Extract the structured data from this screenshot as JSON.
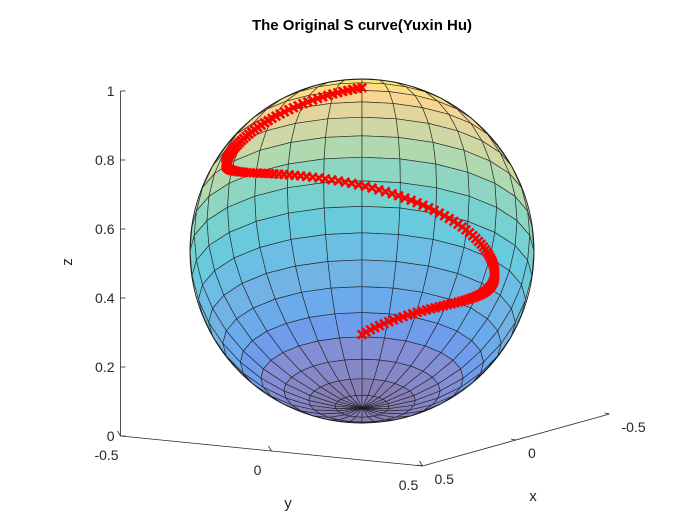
{
  "chart_data": {
    "type": "sphere-surface-with-curve",
    "title": "The Original S curve(Yuxin Hu)",
    "xlabel": "x",
    "ylabel": "y",
    "zlabel": "z",
    "xlim": [
      -0.5,
      0.5
    ],
    "ylim": [
      -0.5,
      0.5
    ],
    "zlim": [
      0,
      1
    ],
    "x_ticks": [
      0.5,
      0,
      -0.5
    ],
    "x_tick_labels": [
      "0.5",
      "0",
      "-0.5"
    ],
    "y_ticks": [
      -0.5,
      0,
      0.5
    ],
    "y_tick_labels": [
      "-0.5",
      "0",
      "0.5"
    ],
    "z_ticks": [
      0,
      0.2,
      0.4,
      0.6,
      0.8,
      1
    ],
    "z_tick_labels": [
      "0",
      "0.2",
      "0.4",
      "0.6",
      "0.8",
      "1"
    ],
    "sphere": {
      "center": [
        0,
        0,
        0.5
      ],
      "radius": 0.5,
      "colormap": "parula (z)",
      "face_alpha": 0.6,
      "latitude_bands": 20,
      "longitude_lines": 20
    },
    "curve": {
      "color": "#ff0000",
      "marker": "x",
      "description": "S-shaped curve drawn on the sphere surface, parameterized by z",
      "z_range": [
        0.1,
        0.87
      ],
      "points": 160
    },
    "grid": false
  }
}
